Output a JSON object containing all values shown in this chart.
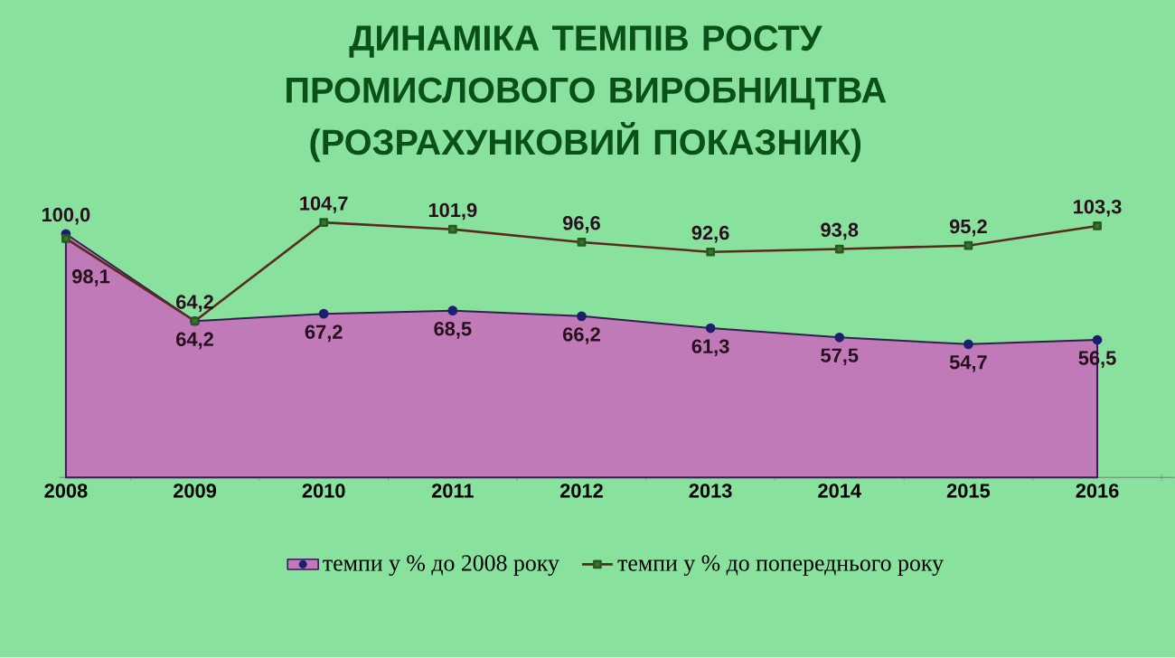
{
  "chart_data": {
    "type": "line",
    "title": "ДИНАМІКА ТЕМПІВ РОСТУ ПРОМИСЛОВОГО ВИРОБНИЦТВА (РОЗРАХУНКОВИЙ ПОКАЗНИК)",
    "categories": [
      "2008",
      "2009",
      "2010",
      "2011",
      "2012",
      "2013",
      "2014",
      "2015",
      "2016"
    ],
    "grid": false,
    "legend": "bottom",
    "tick_labels": "x",
    "series": [
      {
        "name": "темпи у % до 2008 року",
        "type": "area",
        "color": "#c07ab8",
        "marker": "circle",
        "values": [
          100.0,
          64.2,
          67.2,
          68.5,
          66.2,
          61.3,
          57.5,
          54.7,
          56.5
        ],
        "value_labels": [
          "100,0",
          "64,2",
          "67,2",
          "68,5",
          "66,2",
          "61,3",
          "57,5",
          "54,7",
          "56,5"
        ]
      },
      {
        "name": "темпи у % до попереднього року",
        "color": "#5a2a20",
        "marker": "square",
        "values": [
          98.1,
          64.2,
          104.7,
          101.9,
          96.6,
          92.6,
          93.8,
          95.2,
          103.3
        ],
        "value_labels": [
          "98,1",
          "64,2",
          "104,7",
          "101,9",
          "96,6",
          "92,6",
          "93,8",
          "95,2",
          "103,3"
        ]
      }
    ]
  }
}
